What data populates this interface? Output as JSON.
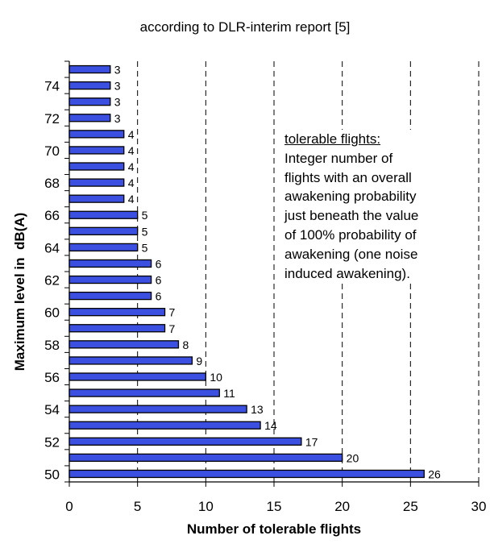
{
  "chart_data": {
    "type": "bar",
    "orientation": "horizontal",
    "title": "according to DLR-interim report [5]",
    "xlabel": "Number of tolerable flights",
    "ylabel": "Maximum level in  dB(A)",
    "xlim": [
      0,
      30
    ],
    "xticks": [
      "0",
      "5",
      "10",
      "15",
      "20",
      "25",
      "30"
    ],
    "grid": "vertical dashed",
    "bar_color": "#3b4fe0",
    "categories": [
      50,
      51,
      52,
      53,
      54,
      55,
      56,
      57,
      58,
      59,
      60,
      61,
      62,
      63,
      64,
      65,
      66,
      67,
      68,
      69,
      70,
      71,
      72,
      73,
      74,
      75
    ],
    "ytick_labels": [
      "50",
      "",
      "52",
      "",
      "54",
      "",
      "56",
      "",
      "58",
      "",
      "60",
      "",
      "62",
      "",
      "64",
      "",
      "66",
      "",
      "68",
      "",
      "70",
      "",
      "72",
      "",
      "74",
      ""
    ],
    "values": [
      26,
      20,
      17,
      14,
      13,
      11,
      10,
      9,
      8,
      7,
      7,
      6,
      6,
      6,
      5,
      5,
      5,
      4,
      4,
      4,
      4,
      4,
      3,
      3,
      3,
      3
    ],
    "data_labels": [
      "26",
      "20",
      "17",
      "14",
      "13",
      "11",
      "10",
      "9",
      "8",
      "7",
      "7",
      "6",
      "6",
      "6",
      "5",
      "5",
      "5",
      "4",
      "4",
      "4",
      "4",
      "4",
      "3",
      "3",
      "3",
      "3"
    ],
    "annotation": {
      "title": "tolerable flights:",
      "lines": [
        "Integer number of",
        "flights with an overall",
        "awakening probability",
        "just beneath the value",
        "of 100% probability of",
        "awakening (one noise",
        "induced awakening)."
      ]
    }
  }
}
